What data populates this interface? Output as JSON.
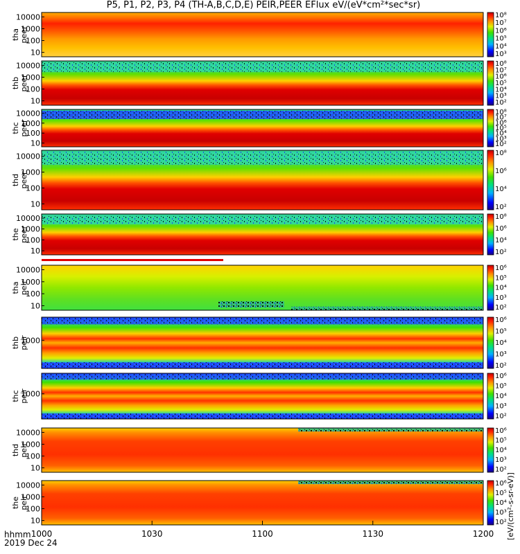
{
  "title": "P5, P1, P2, P3, P4 (TH-A,B,C,D,E) PEIR,PEER EFlux eV/(eV*cm²*sec*sr)",
  "footer": {
    "line1": "hhmm",
    "line2": "2019 Dec 24"
  },
  "colorbar_units": "[eV/(cm²-s-sr-eV)]",
  "chart_data": {
    "type": "heatmap",
    "x_ticks": [
      "1000",
      "1030",
      "1100",
      "1130",
      "1200"
    ],
    "x_range": [
      "10:00",
      "12:00"
    ],
    "panels": [
      {
        "name": "tha peer",
        "line1": "tha",
        "line2": "peer",
        "y_ticks": [
          "10000",
          "1000",
          "100",
          "10"
        ],
        "colorbar_ticks": [
          "10⁸",
          "10⁷",
          "10⁶",
          "10⁵",
          "10⁴",
          "10³"
        ],
        "style": "peer_a"
      },
      {
        "name": "thb peer",
        "line1": "thb",
        "line2": "peer",
        "y_ticks": [
          "10000",
          "1000",
          "100",
          "10"
        ],
        "colorbar_ticks": [
          "10⁸",
          "10⁷",
          "10⁶",
          "10⁵",
          "10⁴",
          "10³",
          "10²"
        ],
        "style": "peer"
      },
      {
        "name": "thc peer",
        "line1": "thc",
        "line2": "peer",
        "y_ticks": [
          "10000",
          "1000",
          "100",
          "10"
        ],
        "colorbar_ticks": [
          "10⁸",
          "10⁷",
          "10⁶",
          "10⁵",
          "10⁴",
          "10³",
          "10²"
        ],
        "style": "peer"
      },
      {
        "name": "thd peer",
        "line1": "thd",
        "line2": "peer",
        "y_ticks": [
          "10000",
          "1000",
          "100",
          "10"
        ],
        "colorbar_ticks": [
          "10⁸",
          "10⁶",
          "10⁴",
          "10²"
        ],
        "style": "peer"
      },
      {
        "name": "the peer",
        "line1": "the",
        "line2": "peer",
        "y_ticks": [
          "10000",
          "1000",
          "100",
          "10"
        ],
        "colorbar_ticks": [
          "10⁸",
          "10⁶",
          "10⁴",
          "10²"
        ],
        "style": "peer"
      },
      {
        "name": "tha peir",
        "line1": "tha",
        "line2": "peir",
        "y_ticks": [
          "10000",
          "1000",
          "100",
          "10"
        ],
        "colorbar_ticks": [
          "10⁶",
          "10⁵",
          "10⁴",
          "10³",
          "10²"
        ],
        "style": "peir_a"
      },
      {
        "name": "thb peir",
        "line1": "thb",
        "line2": "peir",
        "y_ticks": [
          "1000"
        ],
        "colorbar_ticks": [
          "10⁶",
          "10⁵",
          "10⁴",
          "10³",
          "10²"
        ],
        "style": "peir_bands"
      },
      {
        "name": "thc peir",
        "line1": "thc",
        "line2": "peir",
        "y_ticks": [
          "1000"
        ],
        "colorbar_ticks": [
          "10⁶",
          "10⁵",
          "10⁴",
          "10³",
          "10²"
        ],
        "style": "peir_bands"
      },
      {
        "name": "thd peir",
        "line1": "thd",
        "line2": "peir",
        "y_ticks": [
          "10000",
          "1000",
          "100",
          "10"
        ],
        "colorbar_ticks": [
          "10⁶",
          "10⁵",
          "10⁴",
          "10³",
          "10²"
        ],
        "style": "peir_hot"
      },
      {
        "name": "the peir",
        "line1": "the",
        "line2": "peir",
        "y_ticks": [
          "10000",
          "1000",
          "100",
          "10"
        ],
        "colorbar_ticks": [
          "10⁶",
          "10⁵",
          "10⁴",
          "10³",
          "10²"
        ],
        "style": "peir_hot"
      }
    ]
  }
}
